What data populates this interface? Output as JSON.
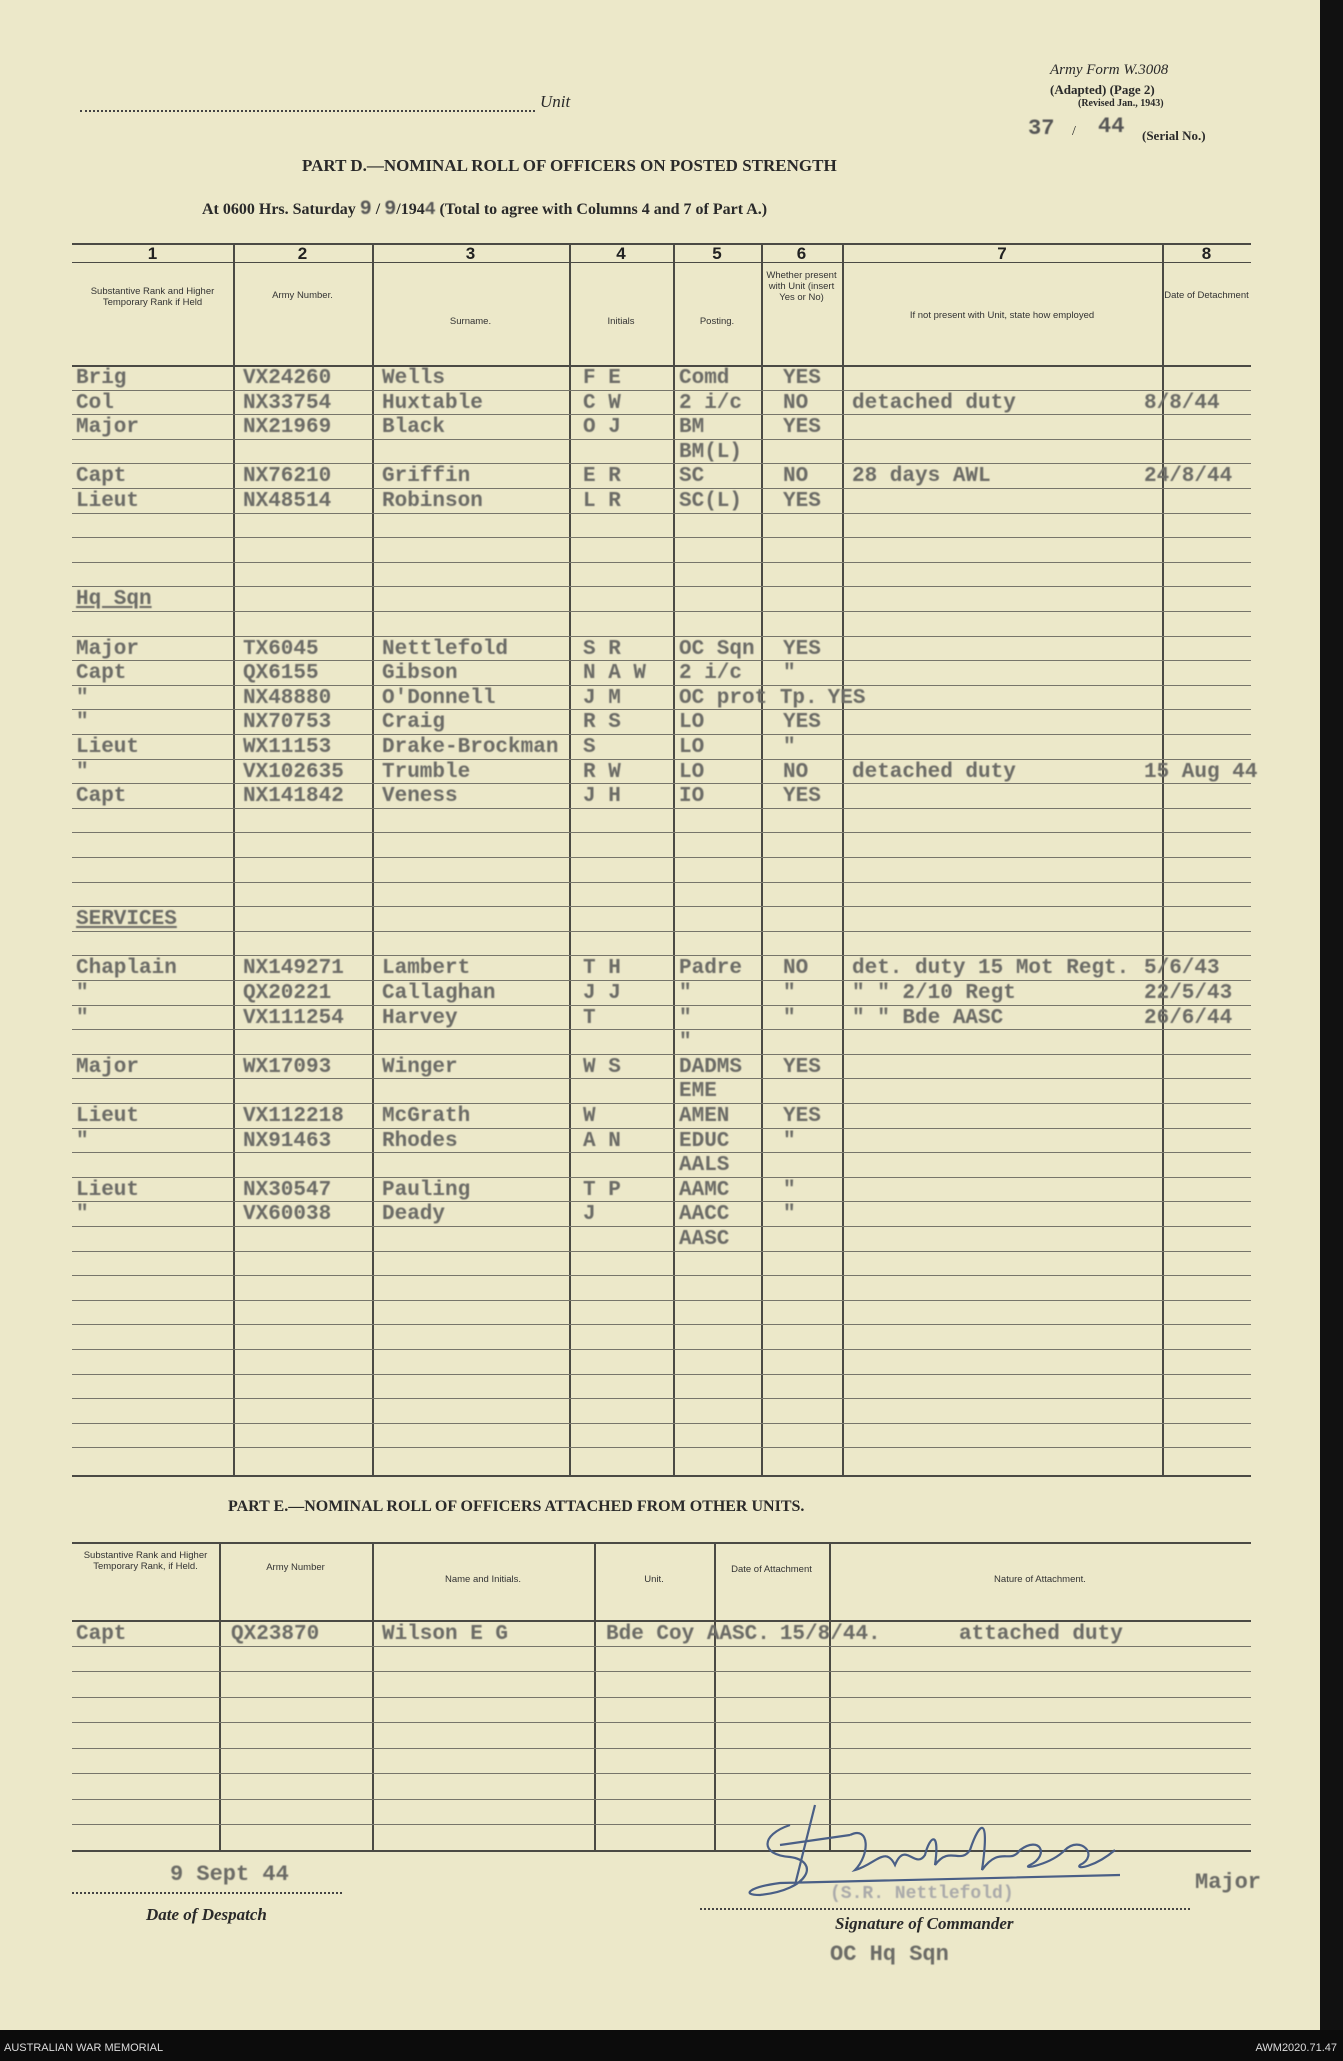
{
  "form": {
    "army_form": "Army Form W.3008",
    "adapted": "(Adapted) (Page 2)",
    "revised": "(Revised Jan., 1943)",
    "serial_num": "37",
    "serial_year": "44",
    "serial_label": "(Serial No.)",
    "unit_label": "Unit"
  },
  "part_d": {
    "title": "PART D.—NOMINAL ROLL OF OFFICERS ON POSTED STRENGTH",
    "at_label": "At 0600 Hrs. Saturday",
    "day": "9",
    "month": "9",
    "year_prefix": "/194",
    "year_digit": "4",
    "note": "(Total to agree with Columns 4 and 7 of Part A.)",
    "column_numbers": [
      "1",
      "2",
      "3",
      "4",
      "5",
      "6",
      "7",
      "8"
    ],
    "columns": [
      "Substantive Rank and Higher Temporary Rank if Held",
      "Army Number.",
      "Surname.",
      "Initials",
      "Posting.",
      "Whether present with Unit (insert Yes or No)",
      "If not present with Unit, state how employed",
      "Date of Detachment"
    ],
    "rows": [
      [
        "Brig",
        "VX24260",
        "Wells",
        "F E",
        "Comd",
        "YES",
        "",
        ""
      ],
      [
        "Col",
        "NX33754",
        "Huxtable",
        "C W",
        "2 i/c",
        "NO",
        "detached duty",
        "8/8/44"
      ],
      [
        "Major",
        "NX21969",
        "Black",
        "O J",
        "BM",
        "YES",
        "",
        ""
      ],
      [
        "",
        "",
        "",
        "",
        "BM(L)",
        "",
        "",
        ""
      ],
      [
        "Capt",
        "NX76210",
        "Griffin",
        "E R",
        "SC",
        "NO",
        "28 days AWL",
        "24/8/44"
      ],
      [
        "Lieut",
        "NX48514",
        "Robinson",
        "L R",
        "SC(L)",
        "YES",
        "",
        ""
      ],
      [
        "",
        "",
        "",
        "",
        "",
        "",
        "",
        ""
      ],
      [
        "",
        "",
        "",
        "",
        "",
        "",
        "",
        ""
      ],
      [
        "",
        "",
        "",
        "",
        "",
        "",
        "",
        ""
      ],
      [
        "Hq Sqn",
        "",
        "",
        "",
        "",
        "",
        "",
        ""
      ],
      [
        "",
        "",
        "",
        "",
        "",
        "",
        "",
        ""
      ],
      [
        "Major",
        "TX6045",
        "Nettlefold",
        "S R",
        "OC Sqn",
        "YES",
        "",
        ""
      ],
      [
        "Capt",
        "QX6155",
        "Gibson",
        "N A W",
        "2 i/c",
        "\"",
        "",
        ""
      ],
      [
        "\"",
        "NX48880",
        "O'Donnell",
        "J M",
        "OC prot Tp.",
        "YES",
        "",
        ""
      ],
      [
        "\"",
        "NX70753",
        "Craig",
        "R S",
        "LO",
        "YES",
        "",
        ""
      ],
      [
        "Lieut",
        "WX11153",
        "Drake-Brockman",
        "S",
        "LO",
        "\"",
        "",
        ""
      ],
      [
        "\"",
        "VX102635",
        "Trumble",
        "R W",
        "LO",
        "NO",
        "detached duty",
        "15 Aug 44"
      ],
      [
        "Capt",
        "NX141842",
        "Veness",
        "J H",
        "IO",
        "YES",
        "",
        ""
      ],
      [
        "",
        "",
        "",
        "",
        "",
        "",
        "",
        ""
      ],
      [
        "",
        "",
        "",
        "",
        "",
        "",
        "",
        ""
      ],
      [
        "",
        "",
        "",
        "",
        "",
        "",
        "",
        ""
      ],
      [
        "",
        "",
        "",
        "",
        "",
        "",
        "",
        ""
      ],
      [
        "SERVICES",
        "",
        "",
        "",
        "",
        "",
        "",
        ""
      ],
      [
        "",
        "",
        "",
        "",
        "",
        "",
        "",
        ""
      ],
      [
        "Chaplain",
        "NX149271",
        "Lambert",
        "T H",
        "Padre",
        "NO",
        "det. duty 15 Mot Regt.",
        "5/6/43"
      ],
      [
        "\"",
        "QX20221",
        "Callaghan",
        "J J",
        "\"",
        "\"",
        "\"  \" 2/10 Regt",
        "22/5/43"
      ],
      [
        "\"",
        "VX111254",
        "Harvey",
        "T",
        "\"",
        "\"",
        "\"  \" Bde AASC",
        "26/6/44"
      ],
      [
        "",
        "",
        "",
        "",
        "\"",
        "",
        "",
        ""
      ],
      [
        "Major",
        "WX17093",
        "Winger",
        "W S",
        "DADMS",
        "YES",
        "",
        ""
      ],
      [
        "",
        "",
        "",
        "",
        "EME",
        "",
        "",
        ""
      ],
      [
        "Lieut",
        "VX112218",
        "McGrath",
        "W",
        "AMEN",
        "YES",
        "",
        ""
      ],
      [
        "\"",
        "NX91463",
        "Rhodes",
        "A N",
        "EDUC",
        "\"",
        "",
        ""
      ],
      [
        "",
        "",
        "",
        "",
        "AALS",
        "",
        "",
        ""
      ],
      [
        "Lieut",
        "NX30547",
        "Pauling",
        "T P",
        "AAMC",
        "\"",
        "",
        ""
      ],
      [
        "\"",
        "VX60038",
        "Deady",
        "J",
        "AACC",
        "\"",
        "",
        ""
      ],
      [
        "",
        "",
        "",
        "",
        "AASC",
        "",
        "",
        ""
      ],
      [
        "",
        "",
        "",
        "",
        "",
        "",
        "",
        ""
      ],
      [
        "",
        "",
        "",
        "",
        "",
        "",
        "",
        ""
      ],
      [
        "",
        "",
        "",
        "",
        "",
        "",
        "",
        ""
      ],
      [
        "",
        "",
        "",
        "",
        "",
        "",
        "",
        ""
      ],
      [
        "",
        "",
        "",
        "",
        "",
        "",
        "",
        ""
      ],
      [
        "",
        "",
        "",
        "",
        "",
        "",
        "",
        ""
      ],
      [
        "",
        "",
        "",
        "",
        "",
        "",
        "",
        ""
      ],
      [
        "",
        "",
        "",
        "",
        "",
        "",
        "",
        ""
      ],
      [
        "",
        "",
        "",
        "",
        "",
        "",
        "",
        ""
      ]
    ]
  },
  "part_e": {
    "title": "PART E.—NOMINAL ROLL OF OFFICERS ATTACHED FROM OTHER UNITS.",
    "columns": [
      "Substantive Rank and Higher Temporary Rank, if Held.",
      "Army Number",
      "Name and Initials.",
      "Unit.",
      "Date of Attachment",
      "Nature of Attachment."
    ],
    "rows": [
      [
        "Capt",
        "QX23870",
        "Wilson E G",
        "Bde Coy AASC.",
        "15/8/44.",
        "attached duty"
      ],
      [
        "",
        "",
        "",
        "",
        "",
        ""
      ],
      [
        "",
        "",
        "",
        "",
        "",
        ""
      ],
      [
        "",
        "",
        "",
        "",
        "",
        ""
      ],
      [
        "",
        "",
        "",
        "",
        "",
        ""
      ],
      [
        "",
        "",
        "",
        "",
        "",
        ""
      ],
      [
        "",
        "",
        "",
        "",
        "",
        ""
      ],
      [
        "",
        "",
        "",
        "",
        "",
        ""
      ],
      [
        "",
        "",
        "",
        "",
        "",
        ""
      ]
    ]
  },
  "footer": {
    "despatch_date": "9 Sept 44",
    "despatch_label": "Date of Despatch",
    "signature_name": "(S.R. Nettlefold)",
    "rank": "Major",
    "signature_label": "Signature of Commander",
    "appointment": "OC Hq Sqn"
  },
  "archive": {
    "left": "AUSTRALIAN WAR MEMORIAL",
    "right": "AWM2020.71.47"
  },
  "colors": {
    "paper": "#ece8c9",
    "typewriter": "#6b6b66",
    "signature_ink": "#4a5f86"
  }
}
